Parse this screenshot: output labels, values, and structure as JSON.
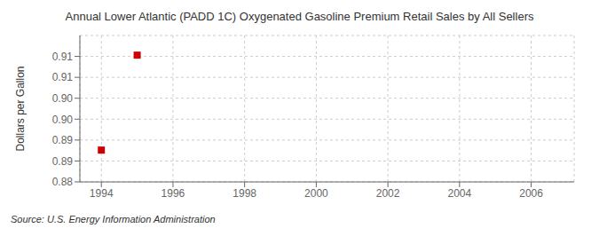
{
  "chart_data": {
    "type": "scatter",
    "title": "Annual Lower Atlantic (PADD 1C) Oxygenated Gasoline Premium Retail Sales by All Sellers",
    "ylabel": "Dollars per Gallon",
    "source": "Source: U.S. Energy Information Administration",
    "x": [
      1994,
      1995
    ],
    "values": [
      0.8876,
      0.9103
    ],
    "xlim": [
      1993.4,
      2007.2
    ],
    "ylim": [
      0.88,
      0.915
    ],
    "xticks": [
      1994,
      1996,
      1998,
      2000,
      2002,
      2004,
      2006
    ],
    "yticks": [
      0.88,
      {
        "value": 0.885,
        "label": "0.89"
      },
      0.89,
      {
        "value": 0.895,
        "label": "0.90"
      },
      {
        "value": 0.9,
        "label": "0.90"
      },
      {
        "value": 0.905,
        "label": "0.91"
      },
      0.91
    ],
    "grid": true,
    "color": "#cc0000",
    "marker": "square"
  }
}
